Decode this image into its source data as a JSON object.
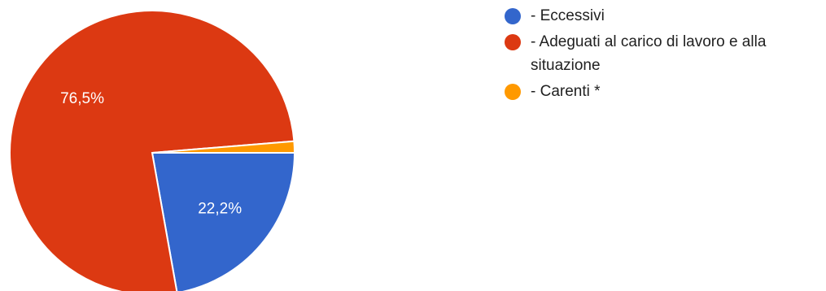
{
  "chart_data": {
    "type": "pie",
    "title": "",
    "slices": [
      {
        "label": "- Eccessivi",
        "value": 22.2,
        "display_label": "22,2%",
        "color": "#3366cc"
      },
      {
        "label": "- Adeguati al carico di lavoro e alla situazione",
        "value": 76.5,
        "display_label": "76,5%",
        "color": "#dc3912"
      },
      {
        "label": "- Carenti *",
        "value": 1.3,
        "display_label": "",
        "color": "#ff9900"
      }
    ],
    "start_angle_deg": 90,
    "direction": "clockwise",
    "legend_position": "right"
  }
}
